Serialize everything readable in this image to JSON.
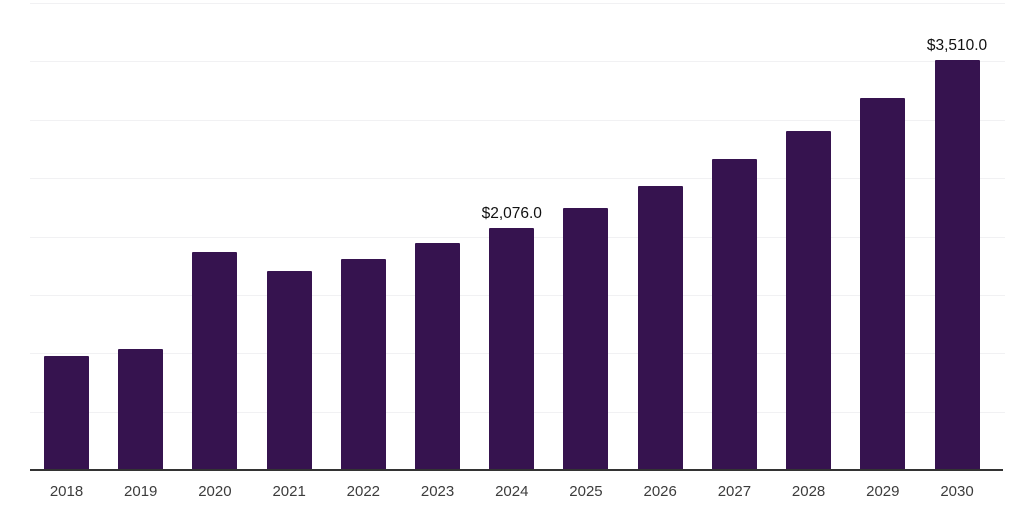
{
  "chart_data": {
    "type": "bar",
    "categories": [
      "2018",
      "2019",
      "2020",
      "2021",
      "2022",
      "2023",
      "2024",
      "2025",
      "2026",
      "2027",
      "2028",
      "2029",
      "2030"
    ],
    "values": [
      975,
      1035,
      1865,
      1705,
      1805,
      1945,
      2076,
      2245,
      2430,
      2665,
      2905,
      3185,
      3510
    ],
    "data_labels": [
      "",
      "",
      "",
      "",
      "",
      "",
      "$2,076.0",
      "",
      "",
      "",
      "",
      "",
      "$3,510.0"
    ],
    "title": "",
    "xlabel": "",
    "ylabel": "",
    "ylim": [
      0,
      4000
    ],
    "gridline_step": 500,
    "grid": "horizontal",
    "legend_position": "none",
    "y_axis_labels_visible": false
  },
  "colors": {
    "bar_fill": "#36134f",
    "gridline": "#f1f1f3",
    "axis_line": "#333333",
    "tick_label": "#3c3c3c",
    "data_label": "#111111",
    "background": "#ffffff"
  }
}
